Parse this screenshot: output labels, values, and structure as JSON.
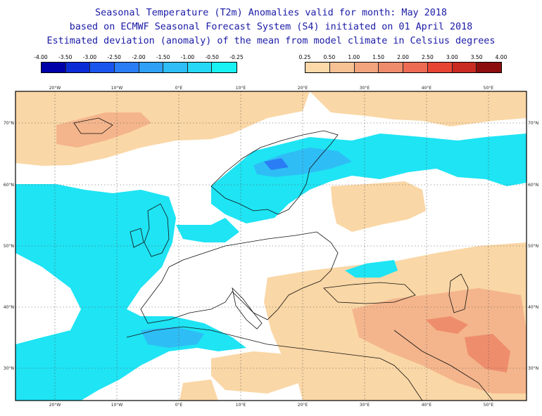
{
  "title": {
    "line1": "Seasonal Temperature (T2m) Anomalies valid for month: May 2018",
    "line2": "based on ECMWF Seasonal Forecast System (S4) initiated on 01 April 2018",
    "line3": "Estimated deviation (anomaly) of the mean from model climate in Celsius degrees"
  },
  "legend_negative": {
    "labels": [
      "-4.00",
      "-3.50",
      "-3.00",
      "-2.50",
      "-2.00",
      "-1.50",
      "-1.00",
      "-0.50",
      "-0.25"
    ],
    "colors": [
      "#0000a8",
      "#0b2bd6",
      "#1a55ee",
      "#2a7df4",
      "#2fa0f5",
      "#2ebdf5",
      "#25d8f5",
      "#18f2f2"
    ]
  },
  "legend_positive": {
    "labels": [
      "0.25",
      "0.50",
      "1.00",
      "1.50",
      "2.00",
      "2.50",
      "3.00",
      "3.50",
      "4.00"
    ],
    "colors": [
      "#fbd9a8",
      "#f6c193",
      "#f2a47c",
      "#ee8b6a",
      "#ec6b52",
      "#e84434",
      "#c92a22",
      "#8c0d0d"
    ]
  },
  "map": {
    "lat_labels": [
      "70°N",
      "60°N",
      "50°N",
      "40°N",
      "30°N"
    ],
    "lon_labels": [
      "20°W",
      "10°W",
      "0°E",
      "10°E",
      "20°E",
      "30°E",
      "40°E",
      "50°E"
    ],
    "colors": {
      "cold_light": "#1ee4f4",
      "cold_medium": "#2fbdf5",
      "cold_dark": "#2a7df4",
      "warm_light": "#fad7a6",
      "warm_medium": "#f4b58c",
      "warm_dark": "#ee8d6c",
      "frame": "#000000",
      "grid": "#555555"
    }
  }
}
